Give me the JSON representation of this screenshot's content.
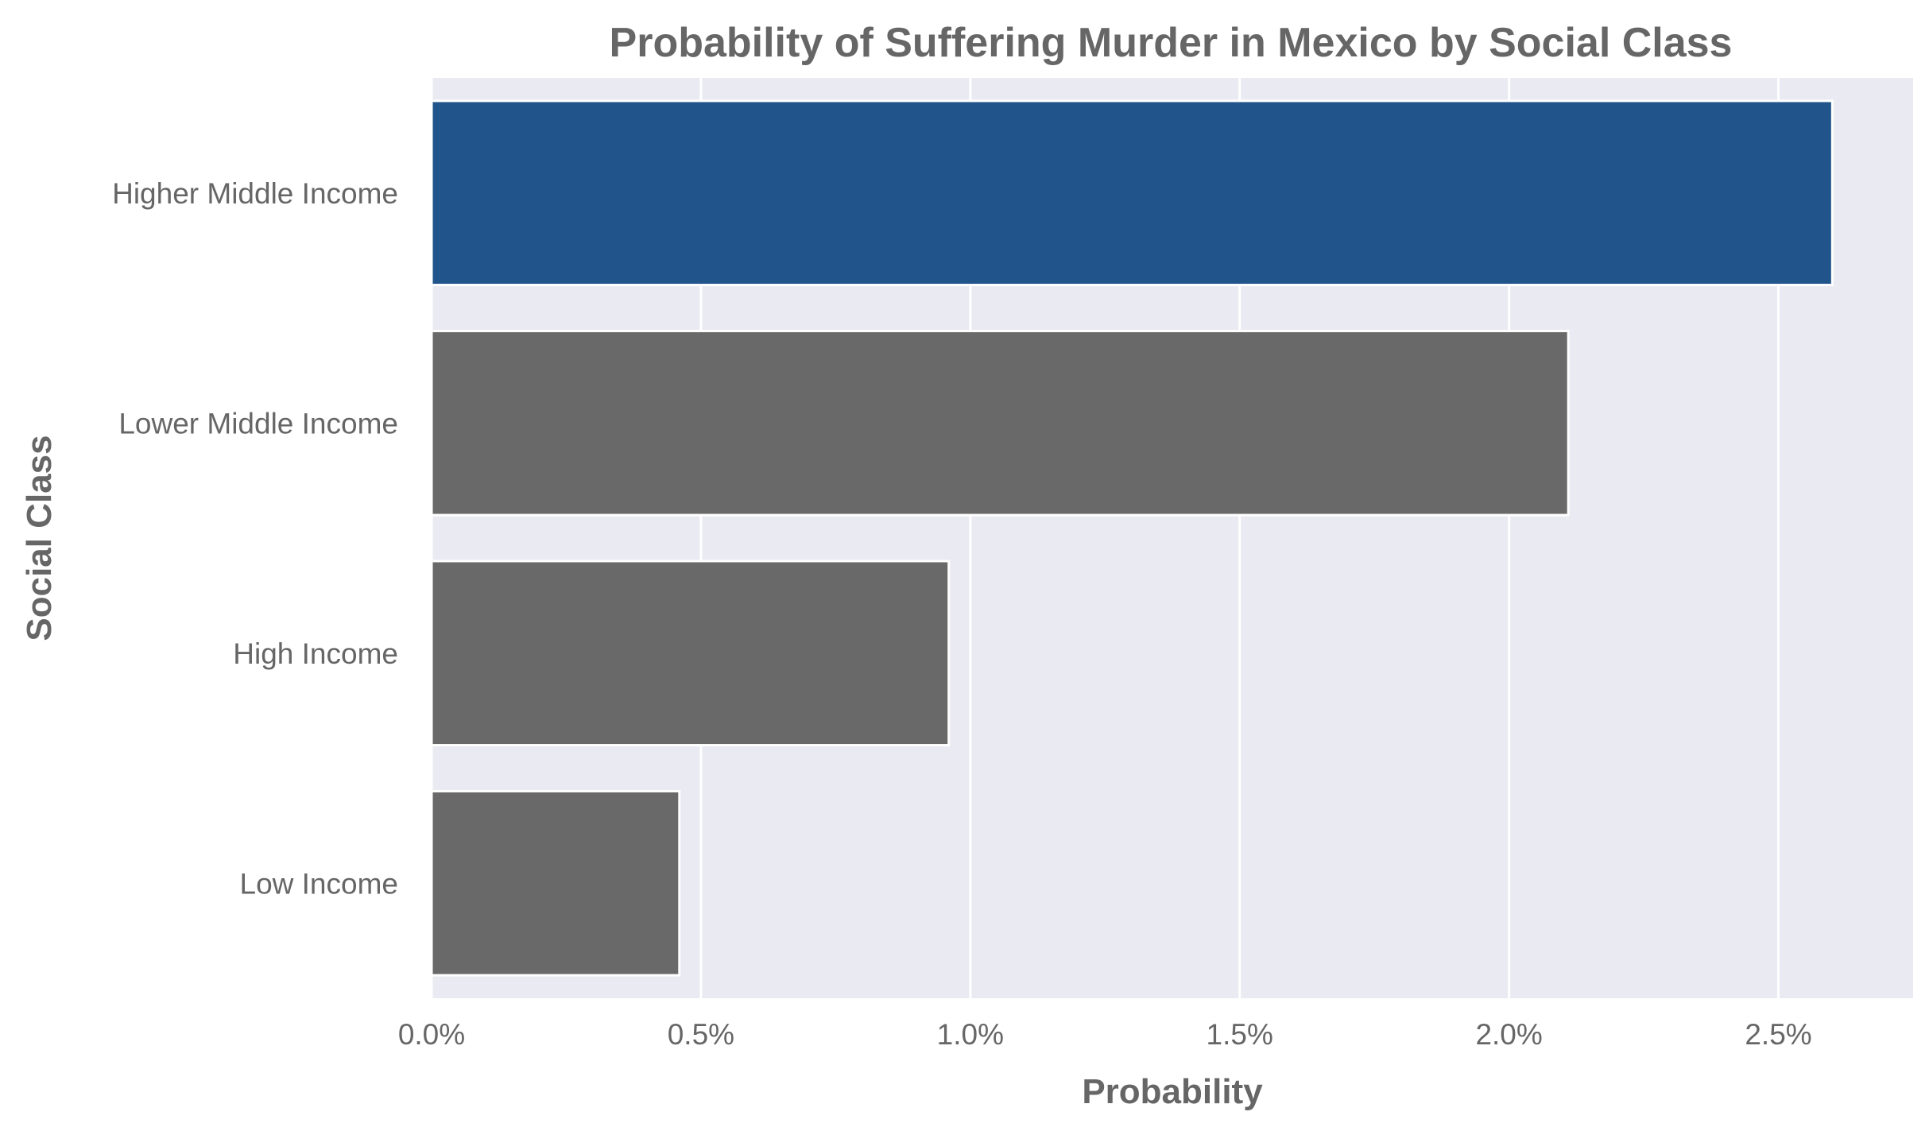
{
  "chart_data": {
    "type": "bar",
    "orientation": "horizontal",
    "title": "Probability of Suffering Murder in Mexico by Social Class",
    "xlabel": "Probability",
    "ylabel": "Social Class",
    "categories": [
      "Higher Middle Income",
      "Lower Middle Income",
      "High Income",
      "Low Income"
    ],
    "values": [
      2.6,
      2.11,
      0.96,
      0.46
    ],
    "value_unit": "%",
    "xlim": [
      0,
      2.75
    ],
    "xticks": [
      0.0,
      0.5,
      1.0,
      1.5,
      2.0,
      2.5
    ],
    "xtick_labels": [
      "0.0%",
      "0.5%",
      "1.0%",
      "1.5%",
      "2.0%",
      "2.5%"
    ],
    "grid": true,
    "highlight_category": "Higher Middle Income",
    "colors": {
      "highlight": "#20548a",
      "default": "#696969",
      "background": "#eaeaf2",
      "text": "#666666"
    }
  }
}
